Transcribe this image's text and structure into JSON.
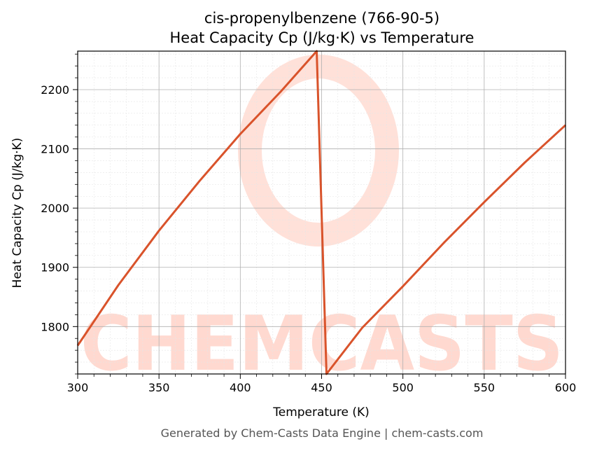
{
  "chart_data": {
    "type": "line",
    "title": "cis-propenylbenzene (766-90-5)",
    "subtitle": "Heat Capacity Cp (J/kg·K) vs Temperature",
    "xlabel": "Temperature (K)",
    "ylabel": "Heat Capacity Cp (J/kg·K)",
    "xlim": [
      300,
      600
    ],
    "ylim": [
      1720,
      2265
    ],
    "x_ticks": [
      300,
      350,
      400,
      450,
      500,
      550,
      600
    ],
    "y_ticks": [
      1800,
      1900,
      2000,
      2100,
      2200
    ],
    "grid": true,
    "legend": "none",
    "line_color": "#d9532b",
    "watermark": "CHEMCASTS",
    "series": [
      {
        "x": [
          300,
          325,
          350,
          375,
          400,
          425,
          447,
          453,
          475,
          500,
          525,
          550,
          575,
          600
        ],
        "values": [
          1768,
          1870,
          1962,
          2046,
          2125,
          2197,
          2265,
          1720,
          1798,
          1868,
          1941,
          2010,
          2077,
          2140
        ]
      }
    ]
  },
  "footer": "Generated by Chem-Casts Data Engine | chem-casts.com"
}
